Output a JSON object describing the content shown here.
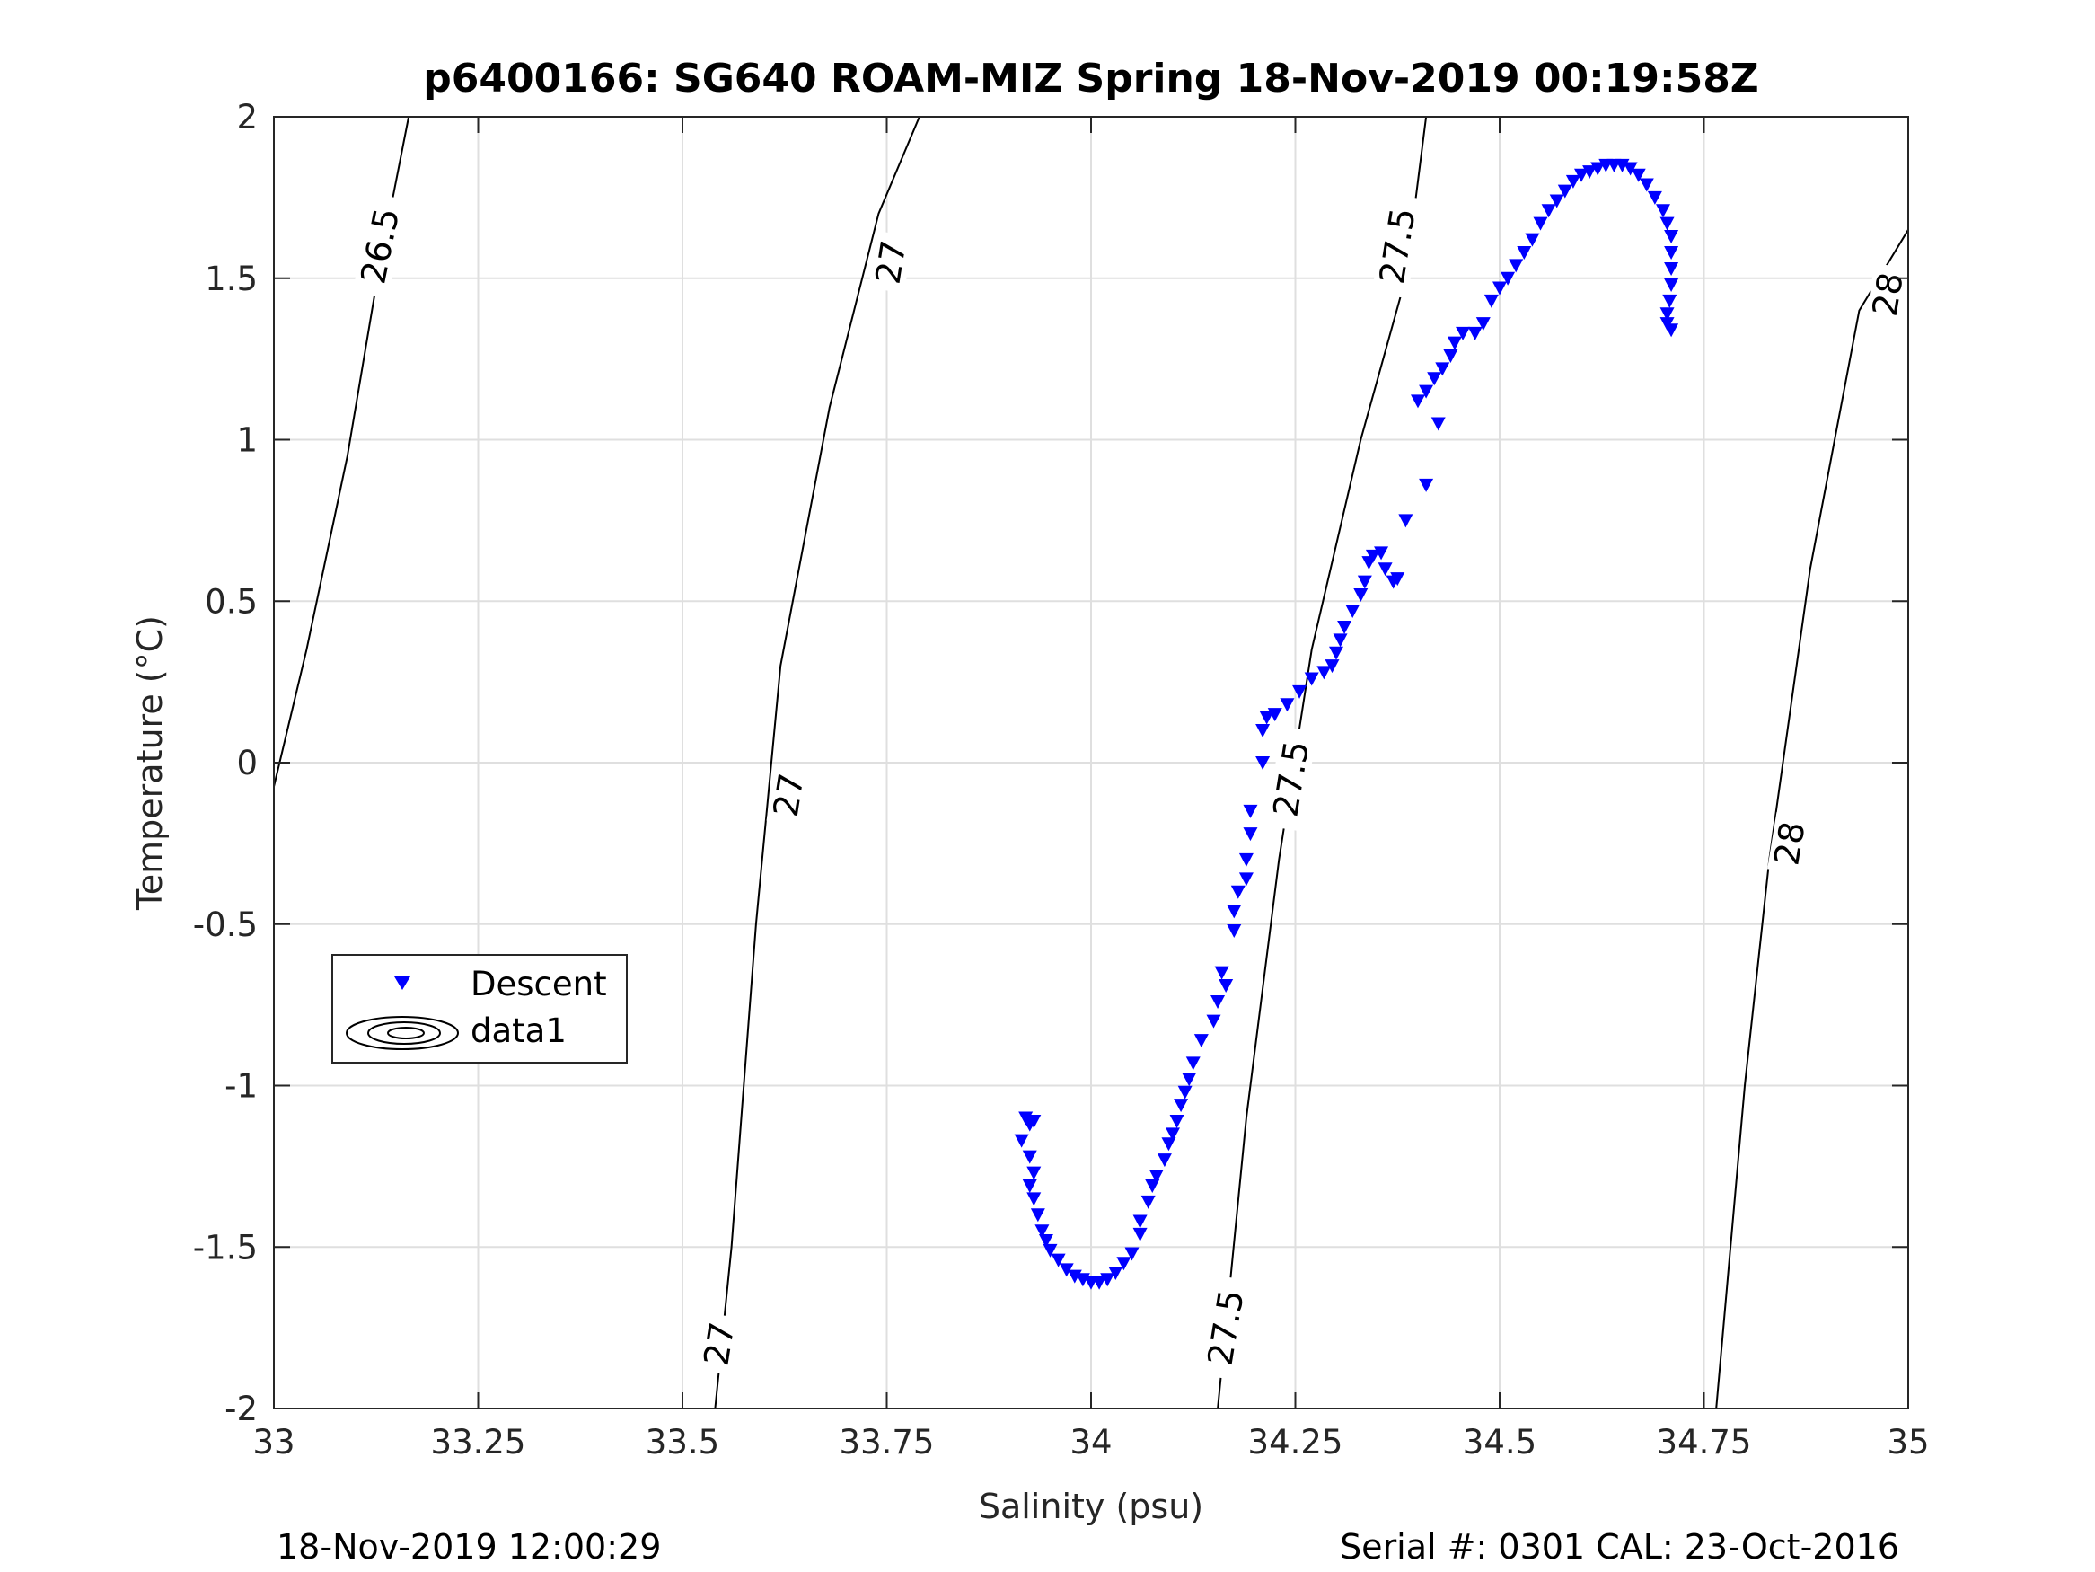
{
  "chart_data": {
    "type": "scatter",
    "title": "p6400166: SG640 ROAM-MIZ Spring 18-Nov-2019 00:19:58Z",
    "xlabel": "Salinity (psu)",
    "ylabel": "Temperature (°C)",
    "xlim": [
      33,
      35
    ],
    "ylim": [
      -2,
      2
    ],
    "grid": true,
    "x_ticks": [
      33,
      33.25,
      33.5,
      33.75,
      34,
      34.25,
      34.5,
      34.75,
      35
    ],
    "x_tick_labels": [
      "33",
      "33.25",
      "33.5",
      "33.75",
      "34",
      "34.25",
      "34.5",
      "34.75",
      "35"
    ],
    "y_ticks": [
      -2,
      -1.5,
      -1,
      -0.5,
      0,
      0.5,
      1,
      1.5,
      2
    ],
    "y_tick_labels": [
      "-2",
      "-1.5",
      "-1",
      "-0.5",
      "0",
      "0.5",
      "1",
      "1.5",
      "2"
    ],
    "legend": {
      "position": "lower-left",
      "entries": [
        "Descent",
        "data1"
      ]
    },
    "series": [
      {
        "name": "Descent",
        "marker": "triangle-down",
        "color": "#0000ff",
        "points": [
          [
            33.92,
            -1.1
          ],
          [
            33.925,
            -1.12
          ],
          [
            33.93,
            -1.11
          ],
          [
            33.915,
            -1.17
          ],
          [
            33.925,
            -1.22
          ],
          [
            33.93,
            -1.27
          ],
          [
            33.925,
            -1.31
          ],
          [
            33.93,
            -1.35
          ],
          [
            33.935,
            -1.4
          ],
          [
            33.94,
            -1.45
          ],
          [
            33.945,
            -1.48
          ],
          [
            33.95,
            -1.51
          ],
          [
            33.96,
            -1.54
          ],
          [
            33.97,
            -1.57
          ],
          [
            33.98,
            -1.59
          ],
          [
            33.99,
            -1.6
          ],
          [
            34.0,
            -1.61
          ],
          [
            34.01,
            -1.61
          ],
          [
            34.02,
            -1.6
          ],
          [
            34.03,
            -1.58
          ],
          [
            34.04,
            -1.55
          ],
          [
            34.05,
            -1.52
          ],
          [
            34.06,
            -1.46
          ],
          [
            34.06,
            -1.42
          ],
          [
            34.07,
            -1.36
          ],
          [
            34.075,
            -1.31
          ],
          [
            34.08,
            -1.28
          ],
          [
            34.09,
            -1.23
          ],
          [
            34.095,
            -1.18
          ],
          [
            34.1,
            -1.15
          ],
          [
            34.105,
            -1.11
          ],
          [
            34.11,
            -1.06
          ],
          [
            34.115,
            -1.02
          ],
          [
            34.12,
            -0.98
          ],
          [
            34.125,
            -0.93
          ],
          [
            34.135,
            -0.86
          ],
          [
            34.15,
            -0.8
          ],
          [
            34.155,
            -0.74
          ],
          [
            34.165,
            -0.69
          ],
          [
            34.16,
            -0.65
          ],
          [
            34.175,
            -0.52
          ],
          [
            34.175,
            -0.46
          ],
          [
            34.18,
            -0.4
          ],
          [
            34.19,
            -0.36
          ],
          [
            34.19,
            -0.3
          ],
          [
            34.195,
            -0.22
          ],
          [
            34.195,
            -0.15
          ],
          [
            34.21,
            0.0
          ],
          [
            34.21,
            0.1
          ],
          [
            34.215,
            0.14
          ],
          [
            34.225,
            0.15
          ],
          [
            34.24,
            0.18
          ],
          [
            34.255,
            0.22
          ],
          [
            34.27,
            0.26
          ],
          [
            34.285,
            0.28
          ],
          [
            34.295,
            0.3
          ],
          [
            34.3,
            0.34
          ],
          [
            34.305,
            0.38
          ],
          [
            34.31,
            0.42
          ],
          [
            34.32,
            0.47
          ],
          [
            34.33,
            0.52
          ],
          [
            34.335,
            0.56
          ],
          [
            34.34,
            0.62
          ],
          [
            34.345,
            0.64
          ],
          [
            34.355,
            0.65
          ],
          [
            34.36,
            0.6
          ],
          [
            34.37,
            0.56
          ],
          [
            34.375,
            0.57
          ],
          [
            34.385,
            0.75
          ],
          [
            34.41,
            0.86
          ],
          [
            34.425,
            1.05
          ],
          [
            34.4,
            1.12
          ],
          [
            34.41,
            1.15
          ],
          [
            34.42,
            1.19
          ],
          [
            34.43,
            1.22
          ],
          [
            34.44,
            1.26
          ],
          [
            34.445,
            1.3
          ],
          [
            34.455,
            1.33
          ],
          [
            34.47,
            1.33
          ],
          [
            34.48,
            1.36
          ],
          [
            34.49,
            1.43
          ],
          [
            34.5,
            1.47
          ],
          [
            34.51,
            1.5
          ],
          [
            34.52,
            1.54
          ],
          [
            34.53,
            1.58
          ],
          [
            34.54,
            1.62
          ],
          [
            34.55,
            1.67
          ],
          [
            34.56,
            1.71
          ],
          [
            34.57,
            1.74
          ],
          [
            34.58,
            1.77
          ],
          [
            34.59,
            1.8
          ],
          [
            34.6,
            1.82
          ],
          [
            34.61,
            1.83
          ],
          [
            34.62,
            1.84
          ],
          [
            34.63,
            1.85
          ],
          [
            34.64,
            1.85
          ],
          [
            34.65,
            1.85
          ],
          [
            34.66,
            1.84
          ],
          [
            34.67,
            1.82
          ],
          [
            34.68,
            1.79
          ],
          [
            34.69,
            1.75
          ],
          [
            34.7,
            1.71
          ],
          [
            34.705,
            1.67
          ],
          [
            34.71,
            1.63
          ],
          [
            34.71,
            1.58
          ],
          [
            34.71,
            1.53
          ],
          [
            34.71,
            1.48
          ],
          [
            34.708,
            1.43
          ],
          [
            34.705,
            1.39
          ],
          [
            34.705,
            1.36
          ],
          [
            34.71,
            1.34
          ]
        ]
      },
      {
        "name": "data1",
        "type": "contour",
        "color": "#000000",
        "levels": [
          {
            "label": "26.5",
            "points": [
              [
                32.99,
                -0.18
              ],
              [
                33.04,
                0.35
              ],
              [
                33.09,
                0.95
              ],
              [
                33.13,
                1.55
              ],
              [
                33.165,
                2.0
              ]
            ],
            "label_positions": [
              [
                33.13,
                1.6
              ]
            ]
          },
          {
            "label": "27",
            "points": [
              [
                33.54,
                -2.0
              ],
              [
                33.56,
                -1.5
              ],
              [
                33.59,
                -0.5
              ],
              [
                33.62,
                0.3
              ],
              [
                33.68,
                1.1
              ],
              [
                33.74,
                1.7
              ],
              [
                33.79,
                2.0
              ]
            ],
            "label_positions": [
              [
                33.545,
                -1.8
              ],
              [
                33.63,
                -0.1
              ],
              [
                33.755,
                1.55
              ]
            ]
          },
          {
            "label": "27.5",
            "points": [
              [
                34.155,
                -2.0
              ],
              [
                34.19,
                -1.1
              ],
              [
                34.23,
                -0.3
              ],
              [
                34.27,
                0.35
              ],
              [
                34.33,
                1.0
              ],
              [
                34.385,
                1.5
              ],
              [
                34.41,
                2.0
              ]
            ],
            "label_positions": [
              [
                34.165,
                -1.75
              ],
              [
                34.245,
                -0.05
              ],
              [
                34.375,
                1.6
              ]
            ]
          },
          {
            "label": "28",
            "points": [
              [
                34.765,
                -2.0
              ],
              [
                34.8,
                -1.0
              ],
              [
                34.83,
                -0.3
              ],
              [
                34.88,
                0.6
              ],
              [
                34.94,
                1.4
              ],
              [
                35.0,
                1.65
              ]
            ],
            "label_positions": [
              [
                34.855,
                -0.25
              ],
              [
                34.975,
                1.45
              ]
            ]
          }
        ]
      }
    ]
  },
  "footer": {
    "left": "18-Nov-2019 12:00:29",
    "right": "Serial #: 0301  CAL: 23-Oct-2016"
  }
}
